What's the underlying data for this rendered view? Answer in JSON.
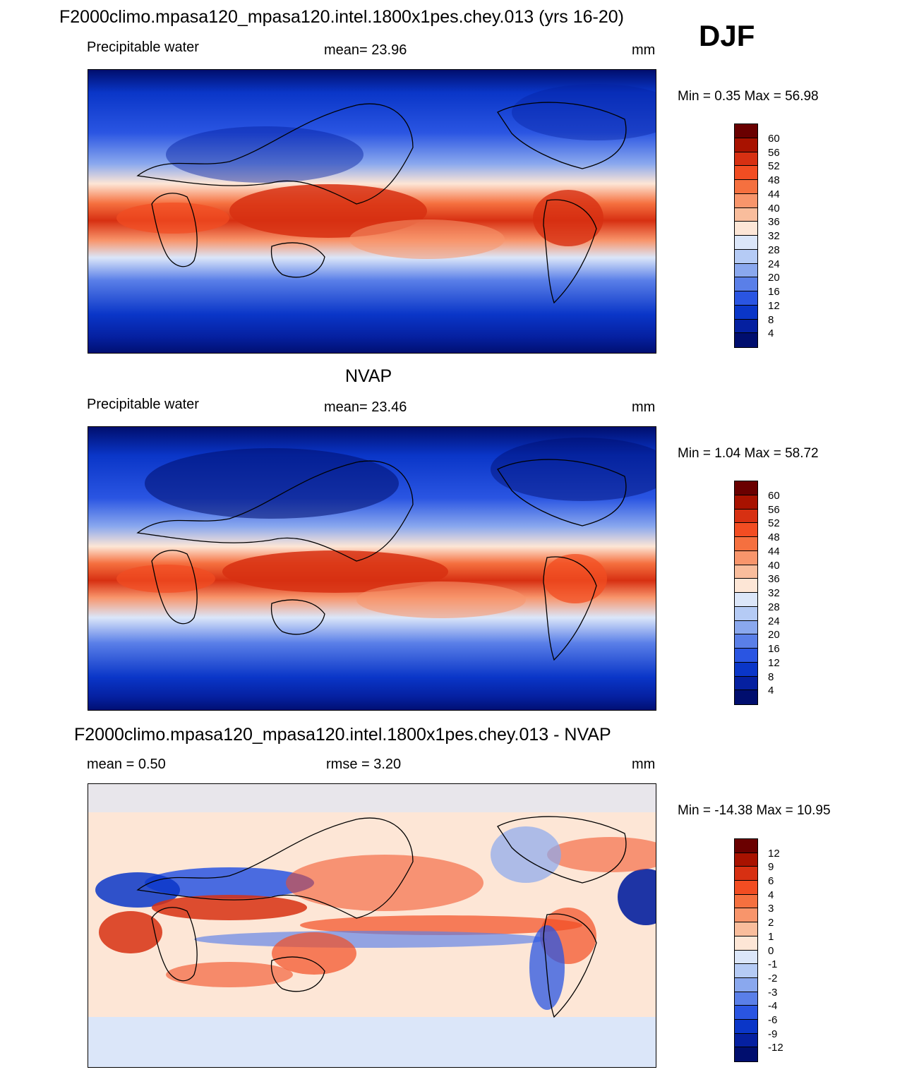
{
  "figure": {
    "main_title": "F2000climo.mpasa120_mpasa120.intel.1800x1pes.chey.013 (yrs 16-20)",
    "season": "DJF"
  },
  "panels": [
    {
      "title": "",
      "left_label": "Precipitable water",
      "center_label": "mean=  23.96",
      "right_label": "mm",
      "minmax": "Min =    0.35 Max =  56.98",
      "colorbar": {
        "labels": [
          "60",
          "56",
          "52",
          "48",
          "44",
          "40",
          "36",
          "32",
          "28",
          "24",
          "20",
          "16",
          "12",
          "8",
          "4"
        ],
        "colors": [
          "#6a0000",
          "#a81200",
          "#d73012",
          "#f24d22",
          "#f5703f",
          "#f8956b",
          "#f9bd9c",
          "#fde6d6",
          "#dbe6f9",
          "#b5cbf5",
          "#8aa8ee",
          "#5a7fe8",
          "#2a55e2",
          "#0a36c8",
          "#0520a0",
          "#000e6e"
        ]
      }
    },
    {
      "title": "NVAP",
      "left_label": "Precipitable water",
      "center_label": "mean=  23.46",
      "right_label": "mm",
      "minmax": "Min =    1.04 Max =  58.72",
      "colorbar": {
        "labels": [
          "60",
          "56",
          "52",
          "48",
          "44",
          "40",
          "36",
          "32",
          "28",
          "24",
          "20",
          "16",
          "12",
          "8",
          "4"
        ],
        "colors": [
          "#6a0000",
          "#a81200",
          "#d73012",
          "#f24d22",
          "#f5703f",
          "#f8956b",
          "#f9bd9c",
          "#fde6d6",
          "#dbe6f9",
          "#b5cbf5",
          "#8aa8ee",
          "#5a7fe8",
          "#2a55e2",
          "#0a36c8",
          "#0520a0",
          "#000e6e"
        ]
      }
    },
    {
      "title": "F2000climo.mpasa120_mpasa120.intel.1800x1pes.chey.013 - NVAP",
      "left_label": "mean =   0.50",
      "center_label": "rmse =    3.20",
      "right_label": "mm",
      "minmax": "Min = -14.38 Max =  10.95",
      "colorbar": {
        "labels": [
          "12",
          "9",
          "6",
          "4",
          "3",
          "2",
          "1",
          "0",
          "-1",
          "-2",
          "-3",
          "-4",
          "-6",
          "-9",
          "-12"
        ],
        "colors": [
          "#6a0000",
          "#a81200",
          "#d73012",
          "#f24d22",
          "#f5703f",
          "#f8956b",
          "#f9bd9c",
          "#fde6d6",
          "#dbe6f9",
          "#b5cbf5",
          "#8aa8ee",
          "#5a7fe8",
          "#2a55e2",
          "#0a36c8",
          "#0520a0",
          "#000e6e"
        ]
      }
    }
  ]
}
